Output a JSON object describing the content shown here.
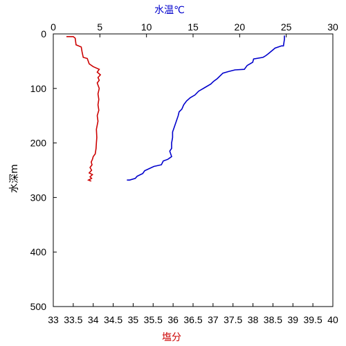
{
  "chart_data": {
    "type": "line",
    "title": "",
    "y_axis": {
      "label": "水深m",
      "range": [
        0,
        500
      ],
      "ticks": [
        "0",
        "100",
        "200",
        "300",
        "400",
        "500"
      ],
      "inverted": true
    },
    "x_axis_top": {
      "label": "水温℃",
      "label_color": "#0000cc",
      "range": [
        0,
        30
      ],
      "ticks": [
        "0",
        "5",
        "10",
        "15",
        "20",
        "25",
        "30"
      ]
    },
    "x_axis_bottom": {
      "label": "塩分",
      "label_color": "#cc0000",
      "range": [
        33,
        40
      ],
      "ticks": [
        "33",
        "33.5",
        "34",
        "34.5",
        "35",
        "35.5",
        "36",
        "36.5",
        "37",
        "37.5",
        "38",
        "38.5",
        "39",
        "39.5",
        "40"
      ]
    },
    "grid": false,
    "series": [
      {
        "axis": "top",
        "color": "#0000cc",
        "points": [
          [
            24.8,
            3
          ],
          [
            24.8,
            10
          ],
          [
            24.7,
            22
          ],
          [
            24.5,
            22
          ],
          [
            23.8,
            26
          ],
          [
            23.1,
            36
          ],
          [
            22.8,
            40
          ],
          [
            22.5,
            43
          ],
          [
            21.5,
            46
          ],
          [
            21.4,
            52
          ],
          [
            20.8,
            58
          ],
          [
            20.5,
            65
          ],
          [
            19.5,
            66
          ],
          [
            18.8,
            69
          ],
          [
            18.2,
            72
          ],
          [
            17.6,
            82
          ],
          [
            17.2,
            87
          ],
          [
            16.9,
            92
          ],
          [
            16.2,
            99
          ],
          [
            15.6,
            105
          ],
          [
            15.2,
            112
          ],
          [
            14.7,
            117
          ],
          [
            14.3,
            123
          ],
          [
            14.0,
            130
          ],
          [
            13.8,
            138
          ],
          [
            13.5,
            143
          ],
          [
            13.4,
            150
          ],
          [
            13.2,
            160
          ],
          [
            13.0,
            170
          ],
          [
            12.8,
            180
          ],
          [
            12.8,
            190
          ],
          [
            12.7,
            200
          ],
          [
            12.7,
            210
          ],
          [
            12.5,
            215
          ],
          [
            12.7,
            225
          ],
          [
            12.3,
            230
          ],
          [
            11.8,
            233
          ],
          [
            11.6,
            240
          ],
          [
            10.8,
            243
          ],
          [
            10.3,
            247
          ],
          [
            9.8,
            251
          ],
          [
            9.6,
            256
          ],
          [
            9.0,
            261
          ],
          [
            8.8,
            265
          ],
          [
            8.2,
            268
          ],
          [
            7.9,
            268
          ]
        ]
      },
      {
        "axis": "bottom",
        "color": "#cc0000",
        "points": [
          [
            33.33,
            5
          ],
          [
            33.5,
            5
          ],
          [
            33.55,
            8
          ],
          [
            33.57,
            20
          ],
          [
            33.7,
            24
          ],
          [
            33.72,
            33
          ],
          [
            33.75,
            43
          ],
          [
            33.85,
            45
          ],
          [
            33.9,
            55
          ],
          [
            34.0,
            60
          ],
          [
            34.15,
            65
          ],
          [
            34.1,
            70
          ],
          [
            34.18,
            75
          ],
          [
            34.12,
            80
          ],
          [
            34.15,
            85
          ],
          [
            34.1,
            90
          ],
          [
            34.15,
            100
          ],
          [
            34.12,
            110
          ],
          [
            34.14,
            120
          ],
          [
            34.12,
            130
          ],
          [
            34.14,
            140
          ],
          [
            34.1,
            150
          ],
          [
            34.12,
            160
          ],
          [
            34.08,
            175
          ],
          [
            34.09,
            190
          ],
          [
            34.08,
            200
          ],
          [
            34.07,
            210
          ],
          [
            34.05,
            220
          ],
          [
            34.0,
            225
          ],
          [
            33.98,
            230
          ],
          [
            33.95,
            235
          ],
          [
            33.97,
            240
          ],
          [
            33.92,
            245
          ],
          [
            33.96,
            250
          ],
          [
            33.9,
            255
          ],
          [
            33.98,
            258
          ],
          [
            33.92,
            262
          ],
          [
            33.96,
            265
          ],
          [
            33.88,
            268
          ],
          [
            33.95,
            270
          ]
        ]
      }
    ]
  }
}
